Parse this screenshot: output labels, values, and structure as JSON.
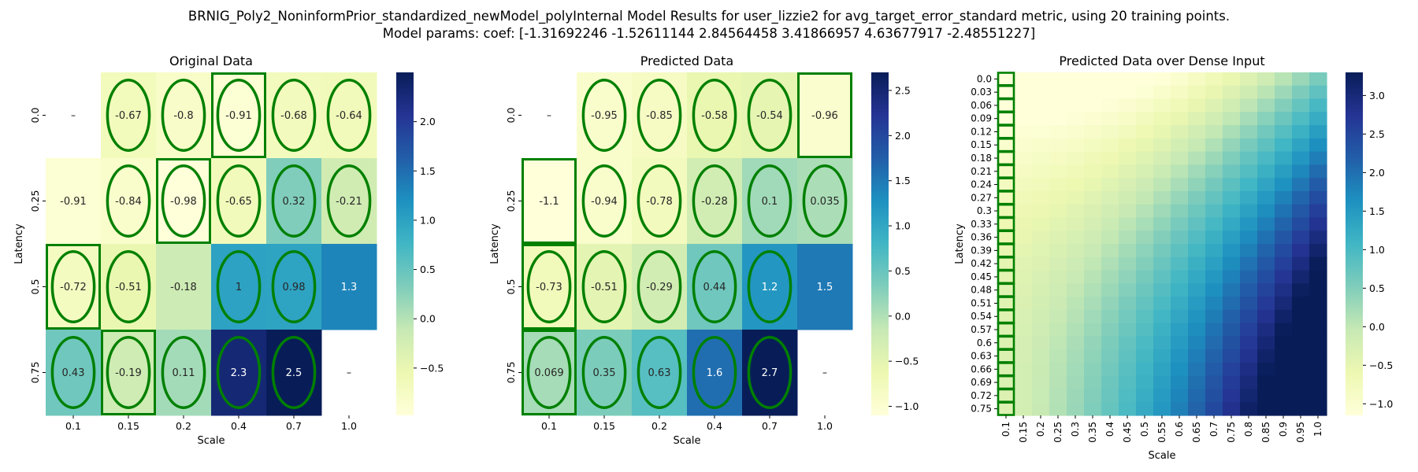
{
  "figure": {
    "title_line1": "BRNIG_Poly2_NoninformPrior_standardized_newModel_polyInternal Model Results for user_lizzie2 for avg_target_error_standard metric, using 20 training points.",
    "title_line2": "Model params: coef: [-1.31692246 -1.52611144  2.84564458  3.41866957  4.63677917 -2.48551227]"
  },
  "colors": {
    "colormap": "YlGnBu",
    "marker": "#008000",
    "stops": [
      "#ffffd9",
      "#edf8b1",
      "#c7e9b4",
      "#7fcdbb",
      "#41b6c4",
      "#1d91c0",
      "#225ea8",
      "#253494",
      "#081d58"
    ]
  },
  "chart_data": [
    {
      "type": "heatmap",
      "title": "Original Data",
      "xlabel": "Scale",
      "ylabel": "Latency",
      "x_ticks": [
        "0.1",
        "0.15",
        "0.2",
        "0.4",
        "0.7",
        "1.0"
      ],
      "y_ticks": [
        "0.0",
        "0.25",
        "0.5",
        "0.75"
      ],
      "values": [
        [
          null,
          -0.67,
          -0.8,
          -0.91,
          -0.68,
          -0.64
        ],
        [
          -0.91,
          -0.84,
          -0.98,
          -0.65,
          0.32,
          -0.21
        ],
        [
          -0.72,
          -0.51,
          -0.18,
          1,
          0.98,
          1.3
        ],
        [
          0.43,
          -0.19,
          0.11,
          2.3,
          2.5,
          null
        ]
      ],
      "vmin": -0.98,
      "vmax": 2.5,
      "colorbar_ticks": [
        -0.5,
        0.0,
        0.5,
        1.0,
        1.5,
        2.0
      ],
      "colorbar_tick_labels": [
        "−0.5",
        "0.0",
        "0.5",
        "1.0",
        "1.5",
        "2.0"
      ],
      "ellipse_marks": [
        [
          0,
          1
        ],
        [
          0,
          2
        ],
        [
          0,
          3
        ],
        [
          0,
          4
        ],
        [
          0,
          5
        ],
        [
          1,
          1
        ],
        [
          1,
          2
        ],
        [
          1,
          3
        ],
        [
          1,
          4
        ],
        [
          1,
          5
        ],
        [
          2,
          0
        ],
        [
          2,
          1
        ],
        [
          2,
          3
        ],
        [
          2,
          4
        ],
        [
          3,
          0
        ],
        [
          3,
          1
        ],
        [
          3,
          2
        ],
        [
          3,
          3
        ],
        [
          3,
          4
        ]
      ],
      "box_marks": [
        [
          0,
          3
        ],
        [
          1,
          2
        ],
        [
          2,
          0
        ],
        [
          3,
          1
        ]
      ]
    },
    {
      "type": "heatmap",
      "title": "Predicted Data",
      "xlabel": "Scale",
      "ylabel": "Latency",
      "x_ticks": [
        "0.1",
        "0.15",
        "0.2",
        "0.4",
        "0.7",
        "1.0"
      ],
      "y_ticks": [
        "0.0",
        "0.25",
        "0.5",
        "0.75"
      ],
      "values": [
        [
          null,
          -0.95,
          -0.85,
          -0.58,
          -0.54,
          -0.96
        ],
        [
          -1.1,
          -0.94,
          -0.78,
          -0.28,
          0.1,
          0.035
        ],
        [
          -0.73,
          -0.51,
          -0.29,
          0.44,
          1.2,
          1.5
        ],
        [
          0.069,
          0.35,
          0.63,
          1.6,
          2.7,
          null
        ]
      ],
      "vmin": -1.1,
      "vmax": 2.7,
      "colorbar_ticks": [
        -1.0,
        -0.5,
        0.0,
        0.5,
        1.0,
        1.5,
        2.0,
        2.5
      ],
      "colorbar_tick_labels": [
        "−1.0",
        "−0.5",
        "0.0",
        "0.5",
        "1.0",
        "1.5",
        "2.0",
        "2.5"
      ],
      "ellipse_marks": [
        [
          0,
          1
        ],
        [
          0,
          2
        ],
        [
          0,
          3
        ],
        [
          0,
          4
        ],
        [
          1,
          1
        ],
        [
          1,
          2
        ],
        [
          1,
          3
        ],
        [
          1,
          4
        ],
        [
          1,
          5
        ],
        [
          2,
          0
        ],
        [
          2,
          1
        ],
        [
          2,
          2
        ],
        [
          2,
          3
        ],
        [
          2,
          4
        ],
        [
          3,
          0
        ],
        [
          3,
          1
        ],
        [
          3,
          2
        ],
        [
          3,
          3
        ],
        [
          3,
          4
        ]
      ],
      "box_marks": [
        [
          0,
          5
        ],
        [
          1,
          0
        ],
        [
          2,
          0
        ],
        [
          3,
          0
        ]
      ]
    },
    {
      "type": "heatmap",
      "title": "Predicted Data over Dense Input",
      "xlabel": "Scale",
      "ylabel": "Latency",
      "x_ticks": [
        "0.1",
        "0.15",
        "0.2",
        "0.25",
        "0.3",
        "0.35",
        "0.4",
        "0.45",
        "0.5",
        "0.55",
        "0.6",
        "0.65",
        "0.7",
        "0.75",
        "0.8",
        "0.85",
        "0.9",
        "0.95",
        "1.0"
      ],
      "y_ticks": [
        "0.0",
        "0.03",
        "0.06",
        "0.09",
        "0.12",
        "0.15",
        "0.18",
        "0.21",
        "0.24",
        "0.27",
        "0.3",
        "0.33",
        "0.36",
        "0.39",
        "0.42",
        "0.45",
        "0.48",
        "0.51",
        "0.54",
        "0.57",
        "0.6",
        "0.63",
        "0.66",
        "0.69",
        "0.72",
        "0.75"
      ],
      "model_coef": [
        -1.31692246,
        -1.52611144,
        2.84564458,
        3.41866957,
        4.63677917,
        -2.48551227
      ],
      "vmin": -1.15,
      "vmax": 3.3,
      "colorbar_ticks": [
        -1.0,
        -0.5,
        0.0,
        0.5,
        1.0,
        1.5,
        2.0,
        2.5,
        3.0
      ],
      "colorbar_tick_labels": [
        "−1.0",
        "−0.5",
        "0.0",
        "0.5",
        "1.0",
        "1.5",
        "2.0",
        "2.5",
        "3.0"
      ]
    }
  ]
}
